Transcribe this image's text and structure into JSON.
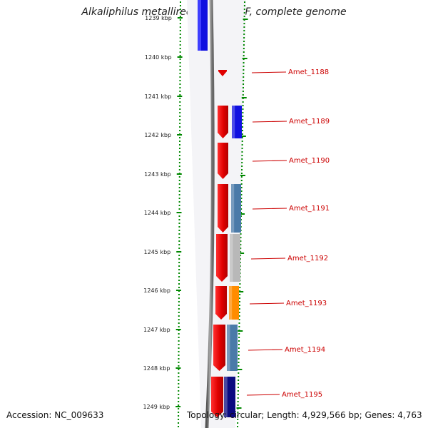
{
  "title": "Alkaliphilus metalliredigens QYMF, complete genome",
  "accession": "Accession: NC_009633",
  "summary": "Topology: circular; Length: 4,929,566 bp; Genes: 4,763",
  "ruler": {
    "unit": "kbp",
    "ticks": [
      "1239 kbp",
      "1240 kbp",
      "1241 kbp",
      "1242 kbp",
      "1243 kbp",
      "1244 kbp",
      "1245 kbp",
      "1246 kbp",
      "1247 kbp",
      "1248 kbp",
      "1249 kbp"
    ]
  },
  "genes": [
    {
      "label": "Amet_1188",
      "color": "#e00000"
    },
    {
      "label": "Amet_1189",
      "color": "#e00000",
      "cog_color": "#1010e0"
    },
    {
      "label": "Amet_1190",
      "color": "#e00000"
    },
    {
      "label": "Amet_1191",
      "color": "#e00000",
      "cog_color": "#4a7aa8"
    },
    {
      "label": "Amet_1192",
      "color": "#e00000",
      "cog_color": "#b8b8b8"
    },
    {
      "label": "Amet_1193",
      "color": "#e00000",
      "cog_color": "#ff8c00"
    },
    {
      "label": "Amet_1194",
      "color": "#e00000",
      "cog_color": "#4a7aa8"
    },
    {
      "label": "Amet_1195",
      "color": "#e00000",
      "cog_color": "#0a0a80"
    }
  ],
  "colors": {
    "label_red": "#cc0000",
    "dotted_green": "#008800",
    "backbone": "#777777",
    "top_block": "#1010e0"
  }
}
